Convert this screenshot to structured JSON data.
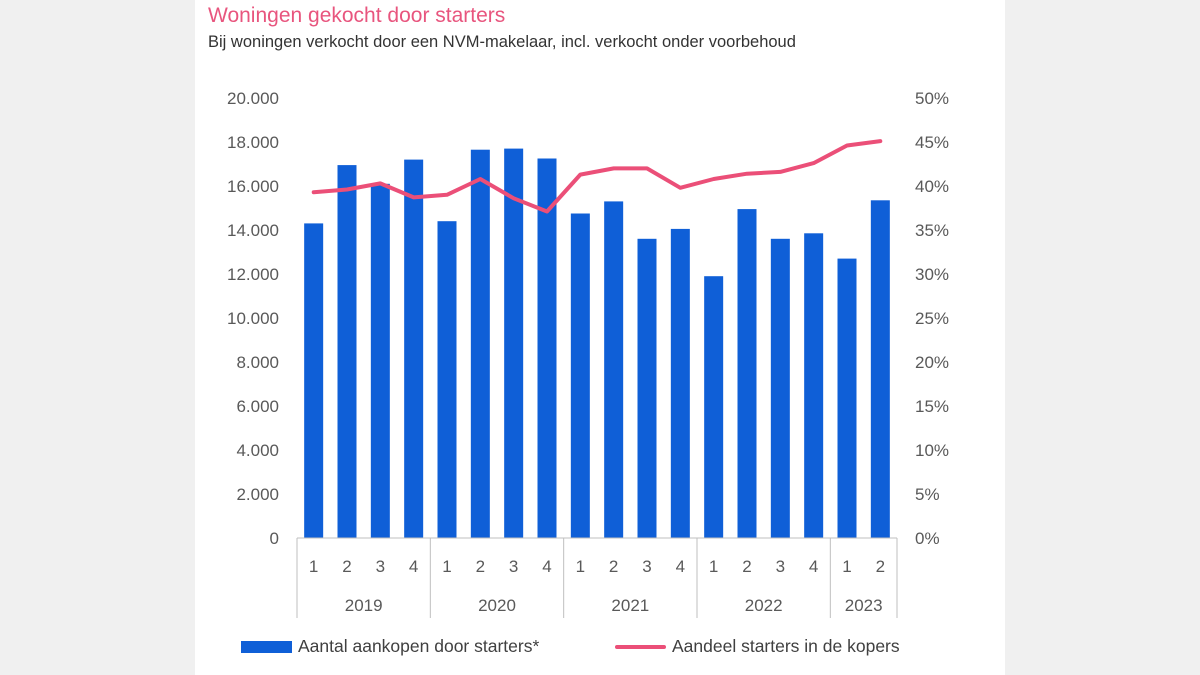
{
  "colors": {
    "bars": "#0f5fd7",
    "line": "#eb4f78",
    "title": "#e8557e",
    "axis": "#bfbfbf"
  },
  "chart_data": {
    "type": "bar",
    "title": "Woningen gekocht door starters",
    "subtitle": "Bij woningen verkocht door een NVM-makelaar, incl. verkocht onder voorbehoud",
    "categories": [
      "1",
      "2",
      "3",
      "4",
      "1",
      "2",
      "3",
      "4",
      "1",
      "2",
      "3",
      "4",
      "1",
      "2",
      "3",
      "4",
      "1",
      "2"
    ],
    "years": [
      {
        "label": "2019",
        "count": 4
      },
      {
        "label": "2020",
        "count": 4
      },
      {
        "label": "2021",
        "count": 4
      },
      {
        "label": "2022",
        "count": 4
      },
      {
        "label": "2023",
        "count": 2
      }
    ],
    "series": [
      {
        "name": "Aantal aankopen door starters*",
        "type": "bar",
        "axis": "left",
        "values": [
          14300,
          16950,
          16100,
          17200,
          14400,
          17650,
          17700,
          17250,
          14750,
          15300,
          13600,
          14050,
          11900,
          14950,
          13600,
          13850,
          12700,
          15350
        ]
      },
      {
        "name": "Aandeel starters in de kopers",
        "type": "line",
        "axis": "right",
        "values": [
          39.3,
          39.6,
          40.3,
          38.7,
          39.0,
          40.8,
          38.6,
          37.1,
          41.3,
          42.0,
          42.0,
          39.8,
          40.8,
          41.4,
          41.6,
          42.6,
          44.6,
          45.1
        ]
      }
    ],
    "y_left": {
      "lim": [
        0,
        20000
      ],
      "ticks": [
        "0",
        "2.000",
        "4.000",
        "6.000",
        "8.000",
        "10.000",
        "12.000",
        "14.000",
        "16.000",
        "18.000",
        "20.000"
      ]
    },
    "y_right": {
      "lim": [
        0,
        50
      ],
      "ticks": [
        "0%",
        "5%",
        "10%",
        "15%",
        "20%",
        "25%",
        "30%",
        "35%",
        "40%",
        "45%",
        "50%"
      ]
    },
    "grid": false,
    "legend_position": "bottom"
  }
}
